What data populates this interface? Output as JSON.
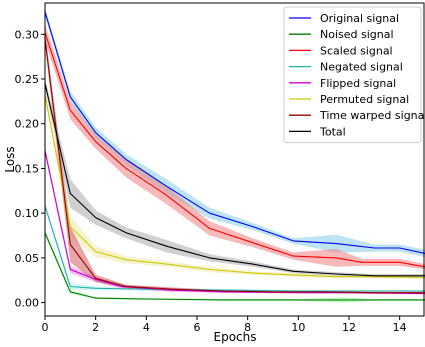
{
  "chart_data": {
    "type": "line",
    "title": "",
    "xlabel": "Epochs",
    "ylabel": "Loss",
    "xlim": [
      0,
      15
    ],
    "ylim": [
      -0.015,
      0.335
    ],
    "xticks": [
      0,
      2,
      4,
      6,
      8,
      10,
      12,
      14
    ],
    "yticks": [
      0.0,
      0.05,
      0.1,
      0.15,
      0.2,
      0.25,
      0.3
    ],
    "ytick_labels": [
      "0.00",
      "0.05",
      "0.10",
      "0.15",
      "0.20",
      "0.25",
      "0.30"
    ],
    "grid": false,
    "legend": "top-right",
    "series": [
      {
        "name": "Original signal",
        "color": "#0000ff",
        "band_color": "#87ceeb",
        "x": [
          0,
          1,
          2,
          3.2,
          4.8,
          6.5,
          8.2,
          9.8,
          11.5,
          13,
          14,
          15
        ],
        "y": [
          0.325,
          0.23,
          0.19,
          0.16,
          0.13,
          0.1,
          0.085,
          0.069,
          0.066,
          0.061,
          0.061,
          0.055
        ],
        "band": [
          0.005,
          0.006,
          0.006,
          0.006,
          0.008,
          0.006,
          0.004,
          0.003,
          0.01,
          0.004,
          0.004,
          0.004
        ]
      },
      {
        "name": "Noised signal",
        "color": "#008000",
        "band_color": "#90ee90",
        "x": [
          0,
          1,
          2,
          4,
          7,
          10,
          11.8,
          13,
          15
        ],
        "y": [
          0.078,
          0.012,
          0.005,
          0.004,
          0.003,
          0.003,
          0.003,
          0.003,
          0.003
        ],
        "band": [
          0.003,
          0.002,
          0.001,
          0.001,
          0.001,
          0.001,
          0.003,
          0.001,
          0.001
        ]
      },
      {
        "name": "Scaled signal",
        "color": "#ff0000",
        "band_color": "#f08080",
        "x": [
          0,
          1,
          2,
          3.2,
          4.8,
          6.5,
          8.2,
          9.8,
          11.5,
          12.5,
          14,
          15
        ],
        "y": [
          0.302,
          0.215,
          0.18,
          0.15,
          0.12,
          0.083,
          0.067,
          0.052,
          0.05,
          0.045,
          0.045,
          0.04
        ],
        "band": [
          0.01,
          0.01,
          0.008,
          0.01,
          0.01,
          0.008,
          0.005,
          0.004,
          0.01,
          0.004,
          0.004,
          0.003
        ]
      },
      {
        "name": "Negated signal",
        "color": "#20b2aa",
        "band_color": "#afeeee",
        "x": [
          0,
          1,
          2,
          4,
          7,
          10,
          13,
          15
        ],
        "y": [
          0.108,
          0.018,
          0.016,
          0.015,
          0.014,
          0.013,
          0.013,
          0.013
        ],
        "band": [
          0.003,
          0.004,
          0.002,
          0.002,
          0.001,
          0.001,
          0.001,
          0.001
        ]
      },
      {
        "name": "Flipped signal",
        "color": "#cc00cc",
        "band_color": "#ee82ee",
        "x": [
          0,
          1,
          2,
          3,
          5,
          7,
          10,
          12,
          15
        ],
        "y": [
          0.17,
          0.037,
          0.026,
          0.018,
          0.014,
          0.012,
          0.011,
          0.011,
          0.01
        ],
        "band": [
          0.004,
          0.004,
          0.003,
          0.002,
          0.002,
          0.001,
          0.001,
          0.001,
          0.001
        ]
      },
      {
        "name": "Permuted signal",
        "color": "#cccc00",
        "band_color": "#eee8aa",
        "x": [
          0,
          1,
          2,
          3.2,
          4.8,
          6.5,
          8.2,
          9.8,
          11.5,
          13,
          15
        ],
        "y": [
          0.232,
          0.085,
          0.057,
          0.048,
          0.043,
          0.037,
          0.033,
          0.031,
          0.029,
          0.029,
          0.028
        ],
        "band": [
          0.005,
          0.012,
          0.006,
          0.004,
          0.003,
          0.003,
          0.002,
          0.002,
          0.002,
          0.002,
          0.002
        ]
      },
      {
        "name": "Time warped signal",
        "color": "#990000",
        "band_color": "#cd5c5c",
        "x": [
          0,
          1,
          2,
          3.2,
          5,
          7,
          9,
          11,
          13,
          15
        ],
        "y": [
          0.295,
          0.065,
          0.027,
          0.018,
          0.015,
          0.013,
          0.012,
          0.012,
          0.011,
          0.011
        ],
        "band": [
          0.008,
          0.02,
          0.004,
          0.002,
          0.002,
          0.001,
          0.001,
          0.001,
          0.001,
          0.001
        ]
      },
      {
        "name": "Total",
        "color": "#000000",
        "band_color": "#a9a9a9",
        "x": [
          0,
          1,
          2,
          3.2,
          4.8,
          6.5,
          8.2,
          9.8,
          11.5,
          13,
          15
        ],
        "y": [
          0.245,
          0.122,
          0.095,
          0.078,
          0.063,
          0.05,
          0.043,
          0.035,
          0.032,
          0.03,
          0.03
        ],
        "band": [
          0.006,
          0.016,
          0.008,
          0.006,
          0.007,
          0.004,
          0.003,
          0.002,
          0.002,
          0.002,
          0.002
        ]
      }
    ]
  }
}
